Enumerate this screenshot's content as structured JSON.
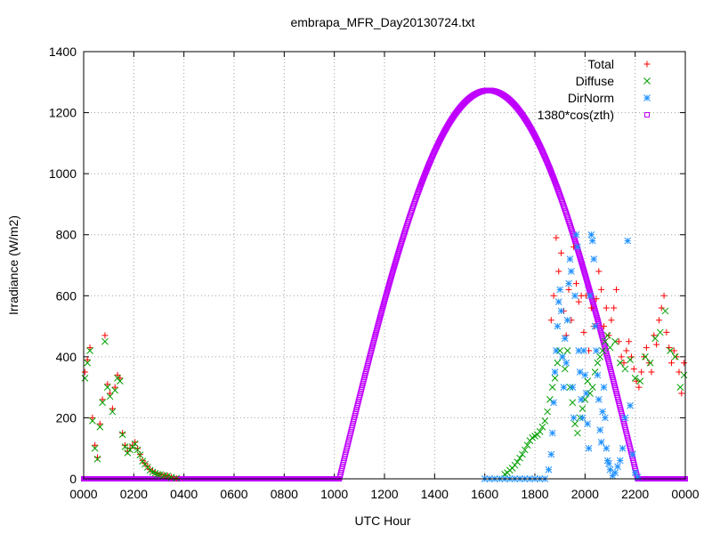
{
  "chart_data": {
    "type": "scatter",
    "title": "embrapa_MFR_Day20130724.txt",
    "xlabel": "UTC Hour",
    "ylabel": "Irradiance (W/m2)",
    "xlim": [
      0,
      24
    ],
    "ylim": [
      0,
      1400
    ],
    "x_ticks": [
      {
        "value": 0,
        "label": "0000"
      },
      {
        "value": 2,
        "label": "0200"
      },
      {
        "value": 4,
        "label": "0400"
      },
      {
        "value": 6,
        "label": "0600"
      },
      {
        "value": 8,
        "label": "0800"
      },
      {
        "value": 10,
        "label": "1000"
      },
      {
        "value": 12,
        "label": "1200"
      },
      {
        "value": 14,
        "label": "1400"
      },
      {
        "value": 16,
        "label": "1600"
      },
      {
        "value": 18,
        "label": "1800"
      },
      {
        "value": 20,
        "label": "2000"
      },
      {
        "value": 22,
        "label": "2200"
      },
      {
        "value": 24,
        "label": "0000"
      }
    ],
    "y_ticks": [
      0,
      200,
      400,
      600,
      800,
      1000,
      1200,
      1400
    ],
    "grid": true,
    "legend_position": "top-right",
    "series": [
      {
        "name": "Total",
        "marker": "plus",
        "color": "#ff0000",
        "points": [
          [
            0.05,
            350
          ],
          [
            0.15,
            390
          ],
          [
            0.25,
            430
          ],
          [
            0.35,
            200
          ],
          [
            0.45,
            110
          ],
          [
            0.55,
            70
          ],
          [
            0.65,
            180
          ],
          [
            0.75,
            260
          ],
          [
            0.85,
            470
          ],
          [
            0.95,
            310
          ],
          [
            1.05,
            280
          ],
          [
            1.15,
            230
          ],
          [
            1.25,
            300
          ],
          [
            1.35,
            340
          ],
          [
            1.45,
            330
          ],
          [
            1.55,
            150
          ],
          [
            1.65,
            110
          ],
          [
            1.75,
            90
          ],
          [
            1.85,
            100
          ],
          [
            1.95,
            110
          ],
          [
            2.05,
            120
          ],
          [
            2.15,
            100
          ],
          [
            2.25,
            80
          ],
          [
            2.35,
            60
          ],
          [
            2.45,
            50
          ],
          [
            2.55,
            40
          ],
          [
            2.65,
            30
          ],
          [
            2.75,
            25
          ],
          [
            2.85,
            20
          ],
          [
            2.95,
            15
          ],
          [
            3.05,
            15
          ],
          [
            3.2,
            12
          ],
          [
            3.35,
            10
          ],
          [
            3.5,
            6
          ],
          [
            3.7,
            2
          ],
          [
            18.65,
            520
          ],
          [
            18.75,
            600
          ],
          [
            18.85,
            790
          ],
          [
            18.95,
            680
          ],
          [
            19.05,
            740
          ],
          [
            19.15,
            550
          ],
          [
            19.25,
            470
          ],
          [
            19.35,
            620
          ],
          [
            19.45,
            520
          ],
          [
            19.55,
            760
          ],
          [
            19.65,
            640
          ],
          [
            19.75,
            580
          ],
          [
            19.85,
            600
          ],
          [
            19.95,
            480
          ],
          [
            20.05,
            600
          ],
          [
            20.15,
            420
          ],
          [
            20.25,
            560
          ],
          [
            20.35,
            500
          ],
          [
            20.45,
            590
          ],
          [
            20.55,
            680
          ],
          [
            20.65,
            620
          ],
          [
            20.75,
            500
          ],
          [
            20.85,
            560
          ],
          [
            20.95,
            470
          ],
          [
            21.05,
            520
          ],
          [
            21.15,
            560
          ],
          [
            21.25,
            620
          ],
          [
            21.35,
            450
          ],
          [
            21.45,
            400
          ],
          [
            21.55,
            380
          ],
          [
            21.65,
            420
          ],
          [
            21.75,
            450
          ],
          [
            21.85,
            400
          ],
          [
            21.95,
            360
          ],
          [
            22.05,
            320
          ],
          [
            22.15,
            300
          ],
          [
            22.25,
            350
          ],
          [
            22.35,
            400
          ],
          [
            22.45,
            430
          ],
          [
            22.55,
            380
          ],
          [
            22.65,
            350
          ],
          [
            22.75,
            470
          ],
          [
            22.85,
            440
          ],
          [
            22.95,
            520
          ],
          [
            23.05,
            560
          ],
          [
            23.15,
            600
          ],
          [
            23.25,
            480
          ],
          [
            23.35,
            430
          ],
          [
            23.45,
            380
          ],
          [
            23.55,
            420
          ],
          [
            23.65,
            400
          ],
          [
            23.75,
            350
          ],
          [
            23.85,
            280
          ],
          [
            23.95,
            380
          ]
        ]
      },
      {
        "name": "Diffuse",
        "marker": "cross",
        "color": "#00a000",
        "points": [
          [
            0.05,
            330
          ],
          [
            0.15,
            380
          ],
          [
            0.25,
            420
          ],
          [
            0.35,
            190
          ],
          [
            0.45,
            100
          ],
          [
            0.55,
            65
          ],
          [
            0.65,
            170
          ],
          [
            0.75,
            250
          ],
          [
            0.85,
            450
          ],
          [
            0.95,
            300
          ],
          [
            1.05,
            270
          ],
          [
            1.15,
            220
          ],
          [
            1.25,
            290
          ],
          [
            1.35,
            330
          ],
          [
            1.45,
            320
          ],
          [
            1.55,
            145
          ],
          [
            1.65,
            105
          ],
          [
            1.75,
            85
          ],
          [
            1.85,
            95
          ],
          [
            1.95,
            105
          ],
          [
            2.05,
            115
          ],
          [
            2.15,
            95
          ],
          [
            2.25,
            78
          ],
          [
            2.35,
            58
          ],
          [
            2.45,
            48
          ],
          [
            2.55,
            38
          ],
          [
            2.65,
            28
          ],
          [
            2.75,
            22
          ],
          [
            2.85,
            18
          ],
          [
            2.95,
            14
          ],
          [
            3.05,
            14
          ],
          [
            3.2,
            11
          ],
          [
            3.35,
            9
          ],
          [
            3.5,
            5
          ],
          [
            3.7,
            2
          ],
          [
            16.8,
            15
          ],
          [
            16.9,
            20
          ],
          [
            17.0,
            28
          ],
          [
            17.1,
            35
          ],
          [
            17.2,
            45
          ],
          [
            17.3,
            55
          ],
          [
            17.4,
            68
          ],
          [
            17.5,
            80
          ],
          [
            17.6,
            95
          ],
          [
            17.7,
            110
          ],
          [
            17.8,
            125
          ],
          [
            17.9,
            135
          ],
          [
            18.0,
            140
          ],
          [
            18.1,
            145
          ],
          [
            18.2,
            155
          ],
          [
            18.3,
            170
          ],
          [
            18.4,
            190
          ],
          [
            18.5,
            220
          ],
          [
            18.6,
            260
          ],
          [
            18.7,
            300
          ],
          [
            18.8,
            330
          ],
          [
            18.9,
            380
          ],
          [
            19.0,
            420
          ],
          [
            19.1,
            400
          ],
          [
            19.2,
            360
          ],
          [
            19.3,
            420
          ],
          [
            19.4,
            300
          ],
          [
            19.5,
            250
          ],
          [
            19.6,
            180
          ],
          [
            19.7,
            150
          ],
          [
            19.8,
            200
          ],
          [
            19.9,
            230
          ],
          [
            20.0,
            260
          ],
          [
            20.1,
            320
          ],
          [
            20.2,
            280
          ],
          [
            20.3,
            300
          ],
          [
            20.4,
            350
          ],
          [
            20.5,
            380
          ],
          [
            20.6,
            400
          ],
          [
            20.7,
            420
          ],
          [
            20.8,
            450
          ],
          [
            20.9,
            470
          ],
          [
            21.0,
            430
          ],
          [
            21.2,
            450
          ],
          [
            21.4,
            380
          ],
          [
            21.6,
            360
          ],
          [
            21.8,
            390
          ],
          [
            22.0,
            330
          ],
          [
            22.2,
            320
          ],
          [
            22.4,
            400
          ],
          [
            22.6,
            380
          ],
          [
            22.8,
            460
          ],
          [
            23.0,
            480
          ],
          [
            23.2,
            550
          ],
          [
            23.4,
            420
          ],
          [
            23.6,
            400
          ],
          [
            23.8,
            300
          ],
          [
            23.95,
            340
          ]
        ]
      },
      {
        "name": "DirNorm",
        "marker": "star",
        "color": "#1e90ff",
        "points": [
          [
            16.0,
            0
          ],
          [
            16.2,
            0
          ],
          [
            16.4,
            0
          ],
          [
            16.6,
            0
          ],
          [
            16.8,
            0
          ],
          [
            17.0,
            0
          ],
          [
            17.2,
            0
          ],
          [
            17.4,
            0
          ],
          [
            17.6,
            0
          ],
          [
            17.8,
            0
          ],
          [
            18.0,
            0
          ],
          [
            18.2,
            0
          ],
          [
            18.4,
            0
          ],
          [
            18.55,
            30
          ],
          [
            18.65,
            80
          ],
          [
            18.7,
            150
          ],
          [
            18.75,
            250
          ],
          [
            18.8,
            350
          ],
          [
            18.85,
            420
          ],
          [
            18.9,
            500
          ],
          [
            18.95,
            580
          ],
          [
            19.0,
            620
          ],
          [
            19.05,
            550
          ],
          [
            19.1,
            400
          ],
          [
            19.15,
            300
          ],
          [
            19.2,
            460
          ],
          [
            19.25,
            380
          ],
          [
            19.3,
            520
          ],
          [
            19.35,
            640
          ],
          [
            19.4,
            720
          ],
          [
            19.45,
            680
          ],
          [
            19.5,
            300
          ],
          [
            19.55,
            200
          ],
          [
            19.6,
            600
          ],
          [
            19.65,
            800
          ],
          [
            19.7,
            760
          ],
          [
            19.75,
            420
          ],
          [
            19.8,
            350
          ],
          [
            19.85,
            260
          ],
          [
            19.9,
            200
          ],
          [
            19.95,
            420
          ],
          [
            20.0,
            340
          ],
          [
            20.05,
            280
          ],
          [
            20.1,
            180
          ],
          [
            20.15,
            100
          ],
          [
            20.2,
            600
          ],
          [
            20.25,
            800
          ],
          [
            20.3,
            780
          ],
          [
            20.35,
            720
          ],
          [
            20.4,
            500
          ],
          [
            20.45,
            420
          ],
          [
            20.5,
            340
          ],
          [
            20.55,
            260
          ],
          [
            20.6,
            160
          ],
          [
            20.65,
            120
          ],
          [
            20.7,
            220
          ],
          [
            20.75,
            300
          ],
          [
            20.8,
            200
          ],
          [
            20.85,
            100
          ],
          [
            20.9,
            60
          ],
          [
            20.95,
            50
          ],
          [
            21.0,
            30
          ],
          [
            21.1,
            10
          ],
          [
            21.2,
            20
          ],
          [
            21.3,
            40
          ],
          [
            21.4,
            60
          ],
          [
            21.5,
            100
          ],
          [
            21.6,
            200
          ],
          [
            21.7,
            780
          ],
          [
            21.8,
            240
          ],
          [
            21.9,
            80
          ],
          [
            22.0,
            20
          ],
          [
            22.1,
            5
          ]
        ]
      }
    ],
    "curve": {
      "name": "1380*cos(zth)",
      "marker": "square",
      "color": "#c000ff",
      "sunrise": 10.2,
      "sunset": 22.1,
      "peak_x": 16.15,
      "peak_y": 1273
    }
  }
}
